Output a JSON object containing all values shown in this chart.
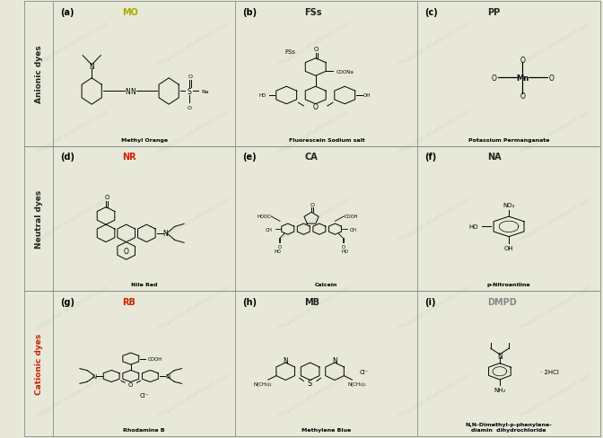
{
  "background_color": "#e8e8d8",
  "grid_bg": "#e8e8d8",
  "border_color": "#888888",
  "row_labels": [
    "Anionic dyes",
    "Neutral dyes",
    "Cationic dyes"
  ],
  "row_label_colors": [
    "#222222",
    "#222222",
    "#cc2200"
  ],
  "cell_labels": [
    [
      "(a)",
      "(b)",
      "(c)"
    ],
    [
      "(d)",
      "(e)",
      "(f)"
    ],
    [
      "(g)",
      "(h)",
      "(i)"
    ]
  ],
  "abbrev_labels": [
    [
      "MO",
      "FSs",
      "PP"
    ],
    [
      "NR",
      "CA",
      "NA"
    ],
    [
      "RB",
      "MB",
      "DMPD"
    ]
  ],
  "abbrev_colors": [
    [
      "#aaaa00",
      "#222222",
      "#222222"
    ],
    [
      "#cc2200",
      "#222222",
      "#222222"
    ],
    [
      "#cc2200",
      "#222222",
      "#888888"
    ]
  ],
  "compound_names": [
    [
      "Methyl Orange",
      "Fluorescein Sodium salt",
      "Potassium Permanganate"
    ],
    [
      "Nile Red",
      "Calcein",
      "p-Nitroaniline"
    ],
    [
      "Rhodamine B",
      "Methylene Blue",
      "N,N-Dimethyl-p-phenylene-\ndiamin  dihydrochloride"
    ]
  ],
  "watermark": "magazine.aroadtome.com",
  "figure_width": 6.72,
  "figure_height": 4.89,
  "dpi": 100
}
